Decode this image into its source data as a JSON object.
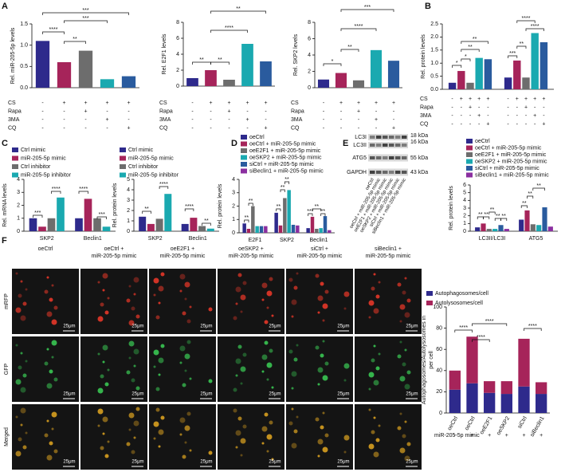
{
  "panels": [
    "A",
    "B",
    "C",
    "D",
    "E",
    "F"
  ],
  "chart_data": [
    {
      "type": "bar",
      "ylabel": "Rel. miR-205-5p levels",
      "categories": [
        null,
        null,
        null,
        null,
        null
      ],
      "values": [
        1.1,
        0.6,
        0.87,
        0.2,
        0.27
      ],
      "colors": [
        "#2e2a8c",
        "#a6245a",
        "#6d6d6d",
        "#1aa9b0",
        "#2a5b9e"
      ],
      "ylim": [
        0,
        1.5
      ],
      "yticks": [
        {
          "value": 0,
          "label": "0.0"
        },
        {
          "value": 0.5,
          "label": "0.5"
        },
        {
          "value": 1,
          "label": "1.0"
        },
        {
          "value": 1.5,
          "label": "1.5"
        }
      ],
      "annotations": [
        "***",
        "****",
        "***",
        "**"
      ],
      "conditions": {
        "labels": [
          "CS",
          "Rapa",
          "3MA",
          "CQ"
        ],
        "signs": [
          [
            "-",
            "+",
            "+",
            "+",
            "+"
          ],
          [
            "-",
            "-",
            "+",
            "-",
            "-"
          ],
          [
            "-",
            "-",
            "-",
            "+",
            "-"
          ],
          [
            "-",
            "-",
            "-",
            "-",
            "+"
          ]
        ]
      }
    },
    {
      "type": "bar",
      "ylabel": "Rel. E2F1 levels",
      "categories": [
        null,
        null,
        null,
        null,
        null
      ],
      "values": [
        1.0,
        2.0,
        0.8,
        5.3,
        3.1
      ],
      "colors": [
        "#2e2a8c",
        "#a6245a",
        "#6d6d6d",
        "#1aa9b0",
        "#2a5b9e"
      ],
      "ylim": [
        0,
        8
      ],
      "yticks": [
        0,
        2,
        4,
        6,
        8
      ],
      "annotations": [
        "**",
        "**",
        "****",
        "**"
      ],
      "conditions": {
        "labels": [
          "CS",
          "Rapa",
          "3MA",
          "CQ"
        ],
        "signs": [
          [
            "-",
            "+",
            "+",
            "+",
            "+"
          ],
          [
            "-",
            "-",
            "+",
            "-",
            "-"
          ],
          [
            "-",
            "-",
            "-",
            "+",
            "-"
          ],
          [
            "-",
            "-",
            "-",
            "-",
            "+"
          ]
        ]
      }
    },
    {
      "type": "bar",
      "ylabel": "Rel. SKP2 levels",
      "categories": [
        null,
        null,
        null,
        null,
        null
      ],
      "values": [
        1.0,
        1.8,
        0.9,
        4.6,
        3.3
      ],
      "colors": [
        "#2e2a8c",
        "#a6245a",
        "#6d6d6d",
        "#1aa9b0",
        "#2a5b9e"
      ],
      "ylim": [
        0,
        8
      ],
      "yticks": [
        0,
        2,
        4,
        6,
        8
      ],
      "annotations": [
        "*",
        "**",
        "****",
        "***"
      ],
      "conditions": {
        "labels": [
          "CS",
          "Rapa",
          "3MA",
          "CQ"
        ],
        "signs": [
          [
            "-",
            "+",
            "+",
            "+",
            "+"
          ],
          [
            "-",
            "-",
            "+",
            "-",
            "-"
          ],
          [
            "-",
            "-",
            "-",
            "+",
            "-"
          ],
          [
            "-",
            "-",
            "-",
            "-",
            "+"
          ]
        ]
      }
    },
    {
      "type": "grouped_bar",
      "ylabel": "Rel. protein levels",
      "categories": [
        "E2F1",
        "SKP2"
      ],
      "series": [
        {
          "color": "#2e2a8c",
          "values": [
            0.25,
            0.45
          ]
        },
        {
          "color": "#a6245a",
          "values": [
            0.7,
            1.1
          ]
        },
        {
          "color": "#6d6d6d",
          "values": [
            0.25,
            0.45
          ]
        },
        {
          "color": "#1aa9b0",
          "values": [
            1.2,
            2.15
          ]
        },
        {
          "color": "#2a5b9e",
          "values": [
            1.15,
            1.8
          ]
        }
      ],
      "ylim": [
        0,
        2.5
      ],
      "yticks": [
        {
          "value": 0,
          "label": "0.0"
        },
        {
          "value": 0.5,
          "label": "0.5"
        },
        {
          "value": 1,
          "label": "1.0"
        },
        {
          "value": 1.5,
          "label": "1.5"
        },
        {
          "value": 2,
          "label": "2.0"
        },
        {
          "value": 2.5,
          "label": "2.5"
        }
      ],
      "annotations": [
        "*",
        "*",
        "**",
        "**",
        "***",
        "**",
        "****",
        "****"
      ],
      "conditions": {
        "labels": [
          "CS",
          "Rapa",
          "3MA",
          "CQ"
        ],
        "signs": [
          [
            "-",
            "+",
            "+",
            "+",
            "+",
            "-",
            "+",
            "+",
            "+",
            "+"
          ],
          [
            "-",
            "-",
            "+",
            "-",
            "-",
            "-",
            "-",
            "+",
            "-",
            "-"
          ],
          [
            "-",
            "-",
            "-",
            "+",
            "-",
            "-",
            "-",
            "-",
            "+",
            "-"
          ],
          [
            "-",
            "-",
            "-",
            "-",
            "+",
            "-",
            "-",
            "-",
            "-",
            "+"
          ]
        ]
      }
    },
    {
      "type": "grouped_bar",
      "ylabel": "Rel. mRNA levels",
      "categories": [
        "SKP2",
        "Beclin1"
      ],
      "series": [
        {
          "name": "Ctrl mimic",
          "color": "#2e2a8c",
          "values": [
            1.0,
            1.0
          ]
        },
        {
          "name": "miR-205-5p mimic",
          "color": "#a6245a",
          "values": [
            0.35,
            2.5
          ]
        },
        {
          "name": "Ctrl inhibitor",
          "color": "#6d6d6d",
          "values": [
            1.0,
            1.0
          ]
        },
        {
          "name": "miR-205-5p inhibitor",
          "color": "#1aa9b0",
          "values": [
            2.6,
            0.35
          ]
        }
      ],
      "ylim": [
        0,
        4
      ],
      "yticks": [
        0,
        1,
        2,
        3,
        4
      ],
      "annotations": [
        "***",
        "****",
        "****",
        "***"
      ]
    },
    {
      "type": "grouped_bar",
      "ylabel": "Rel. protein levels",
      "categories": [
        "SKP2",
        "Beclin1"
      ],
      "series": [
        {
          "name": "Ctrl mimic",
          "color": "#2e2a8c",
          "values": [
            1.4,
            0.7
          ]
        },
        {
          "name": "miR-205-5p mimic",
          "color": "#a6245a",
          "values": [
            0.7,
            1.3
          ]
        },
        {
          "name": "Ctrl inhibitor",
          "color": "#6d6d6d",
          "values": [
            1.2,
            0.5
          ]
        },
        {
          "name": "miR-205-5p inhibitor",
          "color": "#1aa9b0",
          "values": [
            3.6,
            0.25
          ]
        }
      ],
      "ylim": [
        0,
        5
      ],
      "yticks": [
        0,
        1,
        2,
        3,
        4,
        5
      ],
      "annotations": [
        "**",
        "****",
        "****",
        "**"
      ]
    },
    {
      "type": "grouped_bar",
      "ylabel": "Rel. protein levels",
      "categories": [
        "E2F1",
        "SKP2",
        "Beclin1"
      ],
      "series": [
        {
          "name": "oeCtrl",
          "color": "#2e2a8c",
          "values": [
            0.7,
            1.5,
            0.35
          ]
        },
        {
          "name": "oeCtrl + miR-205-5p mimic",
          "color": "#a6245a",
          "values": [
            0.3,
            0.55,
            1.2
          ]
        },
        {
          "name": "oeE2F1 + miR-205-5p mimic",
          "color": "#6d6d6d",
          "values": [
            2.0,
            2.6,
            0.3
          ]
        },
        {
          "name": "oeSKP2 + miR-205-5p mimic",
          "color": "#1aa9b0",
          "values": [
            0.5,
            3.2,
            0.35
          ]
        },
        {
          "name": "siCtrl + miR-205-5p mimic",
          "color": "#2a5b9e",
          "values": [
            0.5,
            0.6,
            1.25
          ]
        },
        {
          "name": "siBeclin1 + miR-205-5p mimic",
          "color": "#8b2fa0",
          "values": [
            0.5,
            0.55,
            0.2
          ]
        }
      ],
      "ylim": [
        0,
        4
      ],
      "yticks": [
        0,
        1,
        2,
        3,
        4
      ],
      "annotations": [
        "**",
        "**",
        "**",
        "**",
        "**",
        "***",
        "**",
        "**"
      ]
    },
    {
      "type": "grouped_bar",
      "ylabel": "Rel. protein levels",
      "categories": [
        "LC3II/LC3I",
        "ATG5"
      ],
      "series": [
        {
          "name": "oeCtrl",
          "color": "#2e2a8c",
          "values": [
            0.5,
            1.5
          ]
        },
        {
          "name": "oeCtrl + miR-205-5p mimic",
          "color": "#a6245a",
          "values": [
            1.0,
            2.7
          ]
        },
        {
          "name": "oeE2F1 + miR-205-5p mimic",
          "color": "#6d6d6d",
          "values": [
            0.3,
            0.9
          ]
        },
        {
          "name": "oeSKP2 + miR-205-5p mimic",
          "color": "#1aa9b0",
          "values": [
            0.3,
            0.8
          ]
        },
        {
          "name": "siCtrl + miR-205-5p mimic",
          "color": "#2a5b9e",
          "values": [
            0.8,
            3.1
          ]
        },
        {
          "name": "siBeclin1 + miR-205-5p mimic",
          "color": "#8b2fa0",
          "values": [
            0.3,
            0.6
          ]
        }
      ],
      "ylim": [
        0,
        6
      ],
      "yticks": [
        0,
        1,
        2,
        3,
        4,
        5,
        6
      ],
      "annotations": [
        "**",
        "**",
        "**",
        "**",
        "**",
        "**",
        "**",
        "**"
      ]
    },
    {
      "type": "stacked_bar",
      "ylabel": [
        "Autophagosomes/Autolysosomes in",
        "per cell"
      ],
      "categories": [
        "oeCtrl",
        "oeCtrl",
        "oeE2F1",
        "oeSKP2",
        "siCtrl",
        "siBeclin1"
      ],
      "series": [
        {
          "name": "Autophagosomes/cell",
          "color": "#2e2a8c",
          "values": [
            22,
            28,
            19,
            18,
            25,
            18
          ]
        },
        {
          "name": "Autolysosomes/cell",
          "color": "#a6245a",
          "values": [
            18,
            44,
            11,
            12,
            45,
            11
          ]
        }
      ],
      "ylim": [
        0,
        100
      ],
      "yticks": [
        0,
        20,
        40,
        60,
        80,
        100
      ],
      "annotations": [
        "****",
        "****",
        "****",
        "****"
      ],
      "conditions": {
        "labels": [
          "miR-205-5p mimic"
        ],
        "signs": [
          [
            "-",
            "+",
            "+",
            "+",
            "+",
            "+"
          ]
        ]
      }
    }
  ],
  "blot": {
    "bands": [
      "LC3I",
      "LC3II",
      "ATG5",
      "GAPDH"
    ],
    "sizes": [
      "18 kDa",
      "16 kDa",
      "55 kDa",
      "43 kDa"
    ],
    "lanes": [
      "oeCtrl",
      "oeCtrl + miR-205-5p mimic",
      "oeE2F1 + miR-205-5p mimic",
      "oeSKP2 + miR-205-5p mimic",
      "siCtrl + miR-205-5p mimic",
      "siBeclin1 + miR-205-5p mimic"
    ]
  },
  "images": {
    "columns": [
      [
        "oeCtrl"
      ],
      [
        "oeCtrl +",
        "miR-205-5p mimic"
      ],
      [
        "oeE2F1 +",
        "miR-205-5p mimic"
      ],
      [
        "oeSKP2 +",
        "miR-205-5p mimic"
      ],
      [
        "siCtrl +",
        "miR-205-5p mimic"
      ],
      [
        "siBeclin1 +",
        "miR-205-5p mimic"
      ]
    ],
    "rows": [
      "mRFP",
      "GFP",
      "Merged"
    ],
    "scale_bar": "25μm"
  }
}
